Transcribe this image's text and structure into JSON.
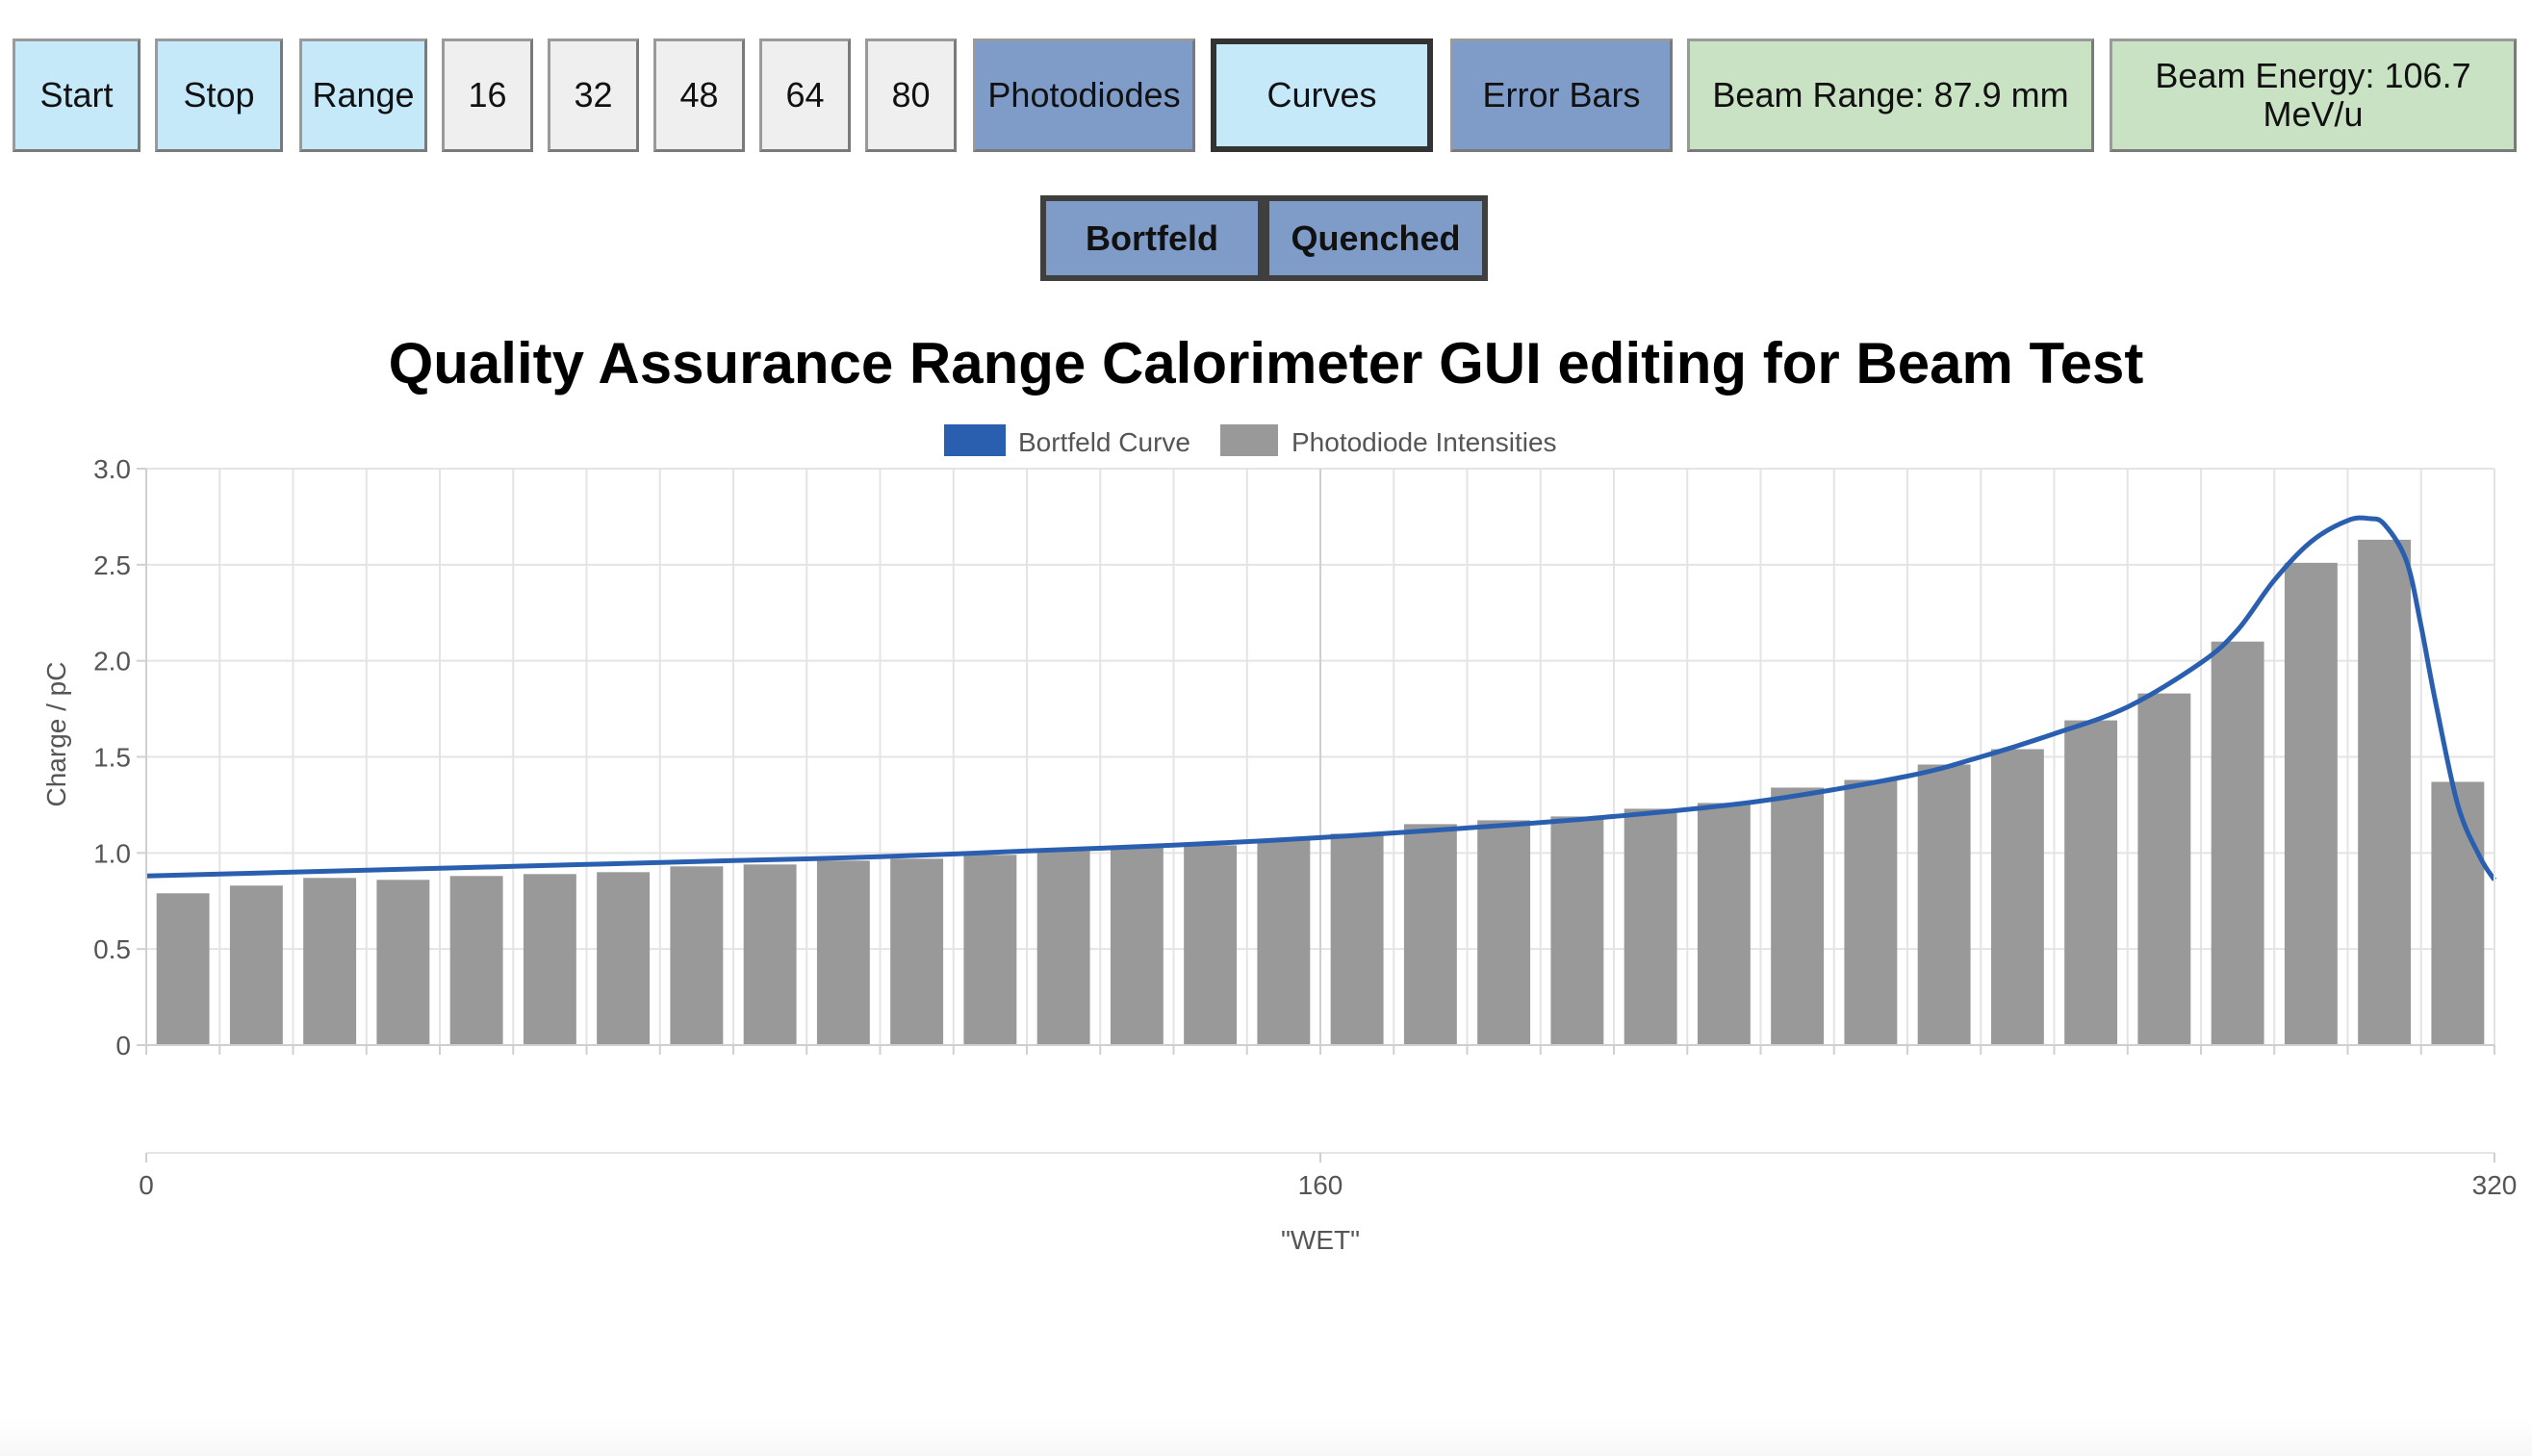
{
  "toolbar": {
    "start": "Start",
    "stop": "Stop",
    "range": "Range",
    "n16": "16",
    "n32": "32",
    "n48": "48",
    "n64": "64",
    "n80": "80",
    "photodiodes": "Photodiodes",
    "curves": "Curves",
    "error_bars": "Error Bars",
    "beam_range": "Beam Range: 87.9 mm",
    "beam_energy": "Beam Energy: 106.7 MeV/u"
  },
  "curve_selector": {
    "bortfeld": "Bortfeld",
    "quenched": "Quenched"
  },
  "colors": {
    "light_blue": "#c5e9f9",
    "mid_blue": "#7e9cc7",
    "green": "#c8e2c3",
    "curve": "#2a5fb0",
    "bars": "#999999"
  },
  "chart_data": {
    "type": "bar",
    "title": "Quality Assurance Range Calorimeter GUI editing for Beam Test",
    "xlabel": "\"WET\"",
    "ylabel": "Charge / pC",
    "xlim": [
      0,
      320
    ],
    "ylim": [
      0,
      3.0
    ],
    "x_ticks": [
      "0",
      "160",
      "320"
    ],
    "y_ticks": [
      "0",
      "0.5",
      "1.0",
      "1.5",
      "2.0",
      "2.5",
      "3.0"
    ],
    "grid": true,
    "legend": {
      "position": "top-center",
      "entries": [
        "Bortfeld Curve",
        "Photodiode Intensities"
      ]
    },
    "series": [
      {
        "name": "Photodiode Intensities",
        "type": "bar",
        "x": [
          5,
          15,
          25,
          35,
          45,
          55,
          65,
          75,
          85,
          95,
          105,
          115,
          125,
          135,
          145,
          155,
          165,
          175,
          185,
          195,
          205,
          215,
          225,
          235,
          245,
          255,
          265,
          275,
          285,
          295,
          305,
          315
        ],
        "values": [
          0.79,
          0.83,
          0.87,
          0.86,
          0.88,
          0.89,
          0.9,
          0.93,
          0.94,
          0.96,
          0.97,
          0.99,
          1.01,
          1.03,
          1.04,
          1.07,
          1.1,
          1.15,
          1.17,
          1.19,
          1.23,
          1.26,
          1.34,
          1.38,
          1.46,
          1.54,
          1.69,
          1.83,
          2.1,
          2.51,
          2.63,
          1.37
        ]
      },
      {
        "name": "Bortfeld Curve",
        "type": "line",
        "x": [
          0,
          20,
          40,
          60,
          80,
          100,
          120,
          140,
          160,
          180,
          200,
          220,
          240,
          250,
          260,
          270,
          280,
          285,
          290,
          295,
          300,
          303,
          305,
          308,
          310,
          312,
          315,
          318,
          320
        ],
        "values": [
          0.88,
          0.9,
          0.92,
          0.94,
          0.96,
          0.98,
          1.01,
          1.04,
          1.08,
          1.13,
          1.19,
          1.27,
          1.4,
          1.5,
          1.62,
          1.76,
          1.99,
          2.16,
          2.42,
          2.62,
          2.73,
          2.74,
          2.71,
          2.52,
          2.18,
          1.78,
          1.25,
          0.98,
          0.86
        ]
      }
    ]
  }
}
